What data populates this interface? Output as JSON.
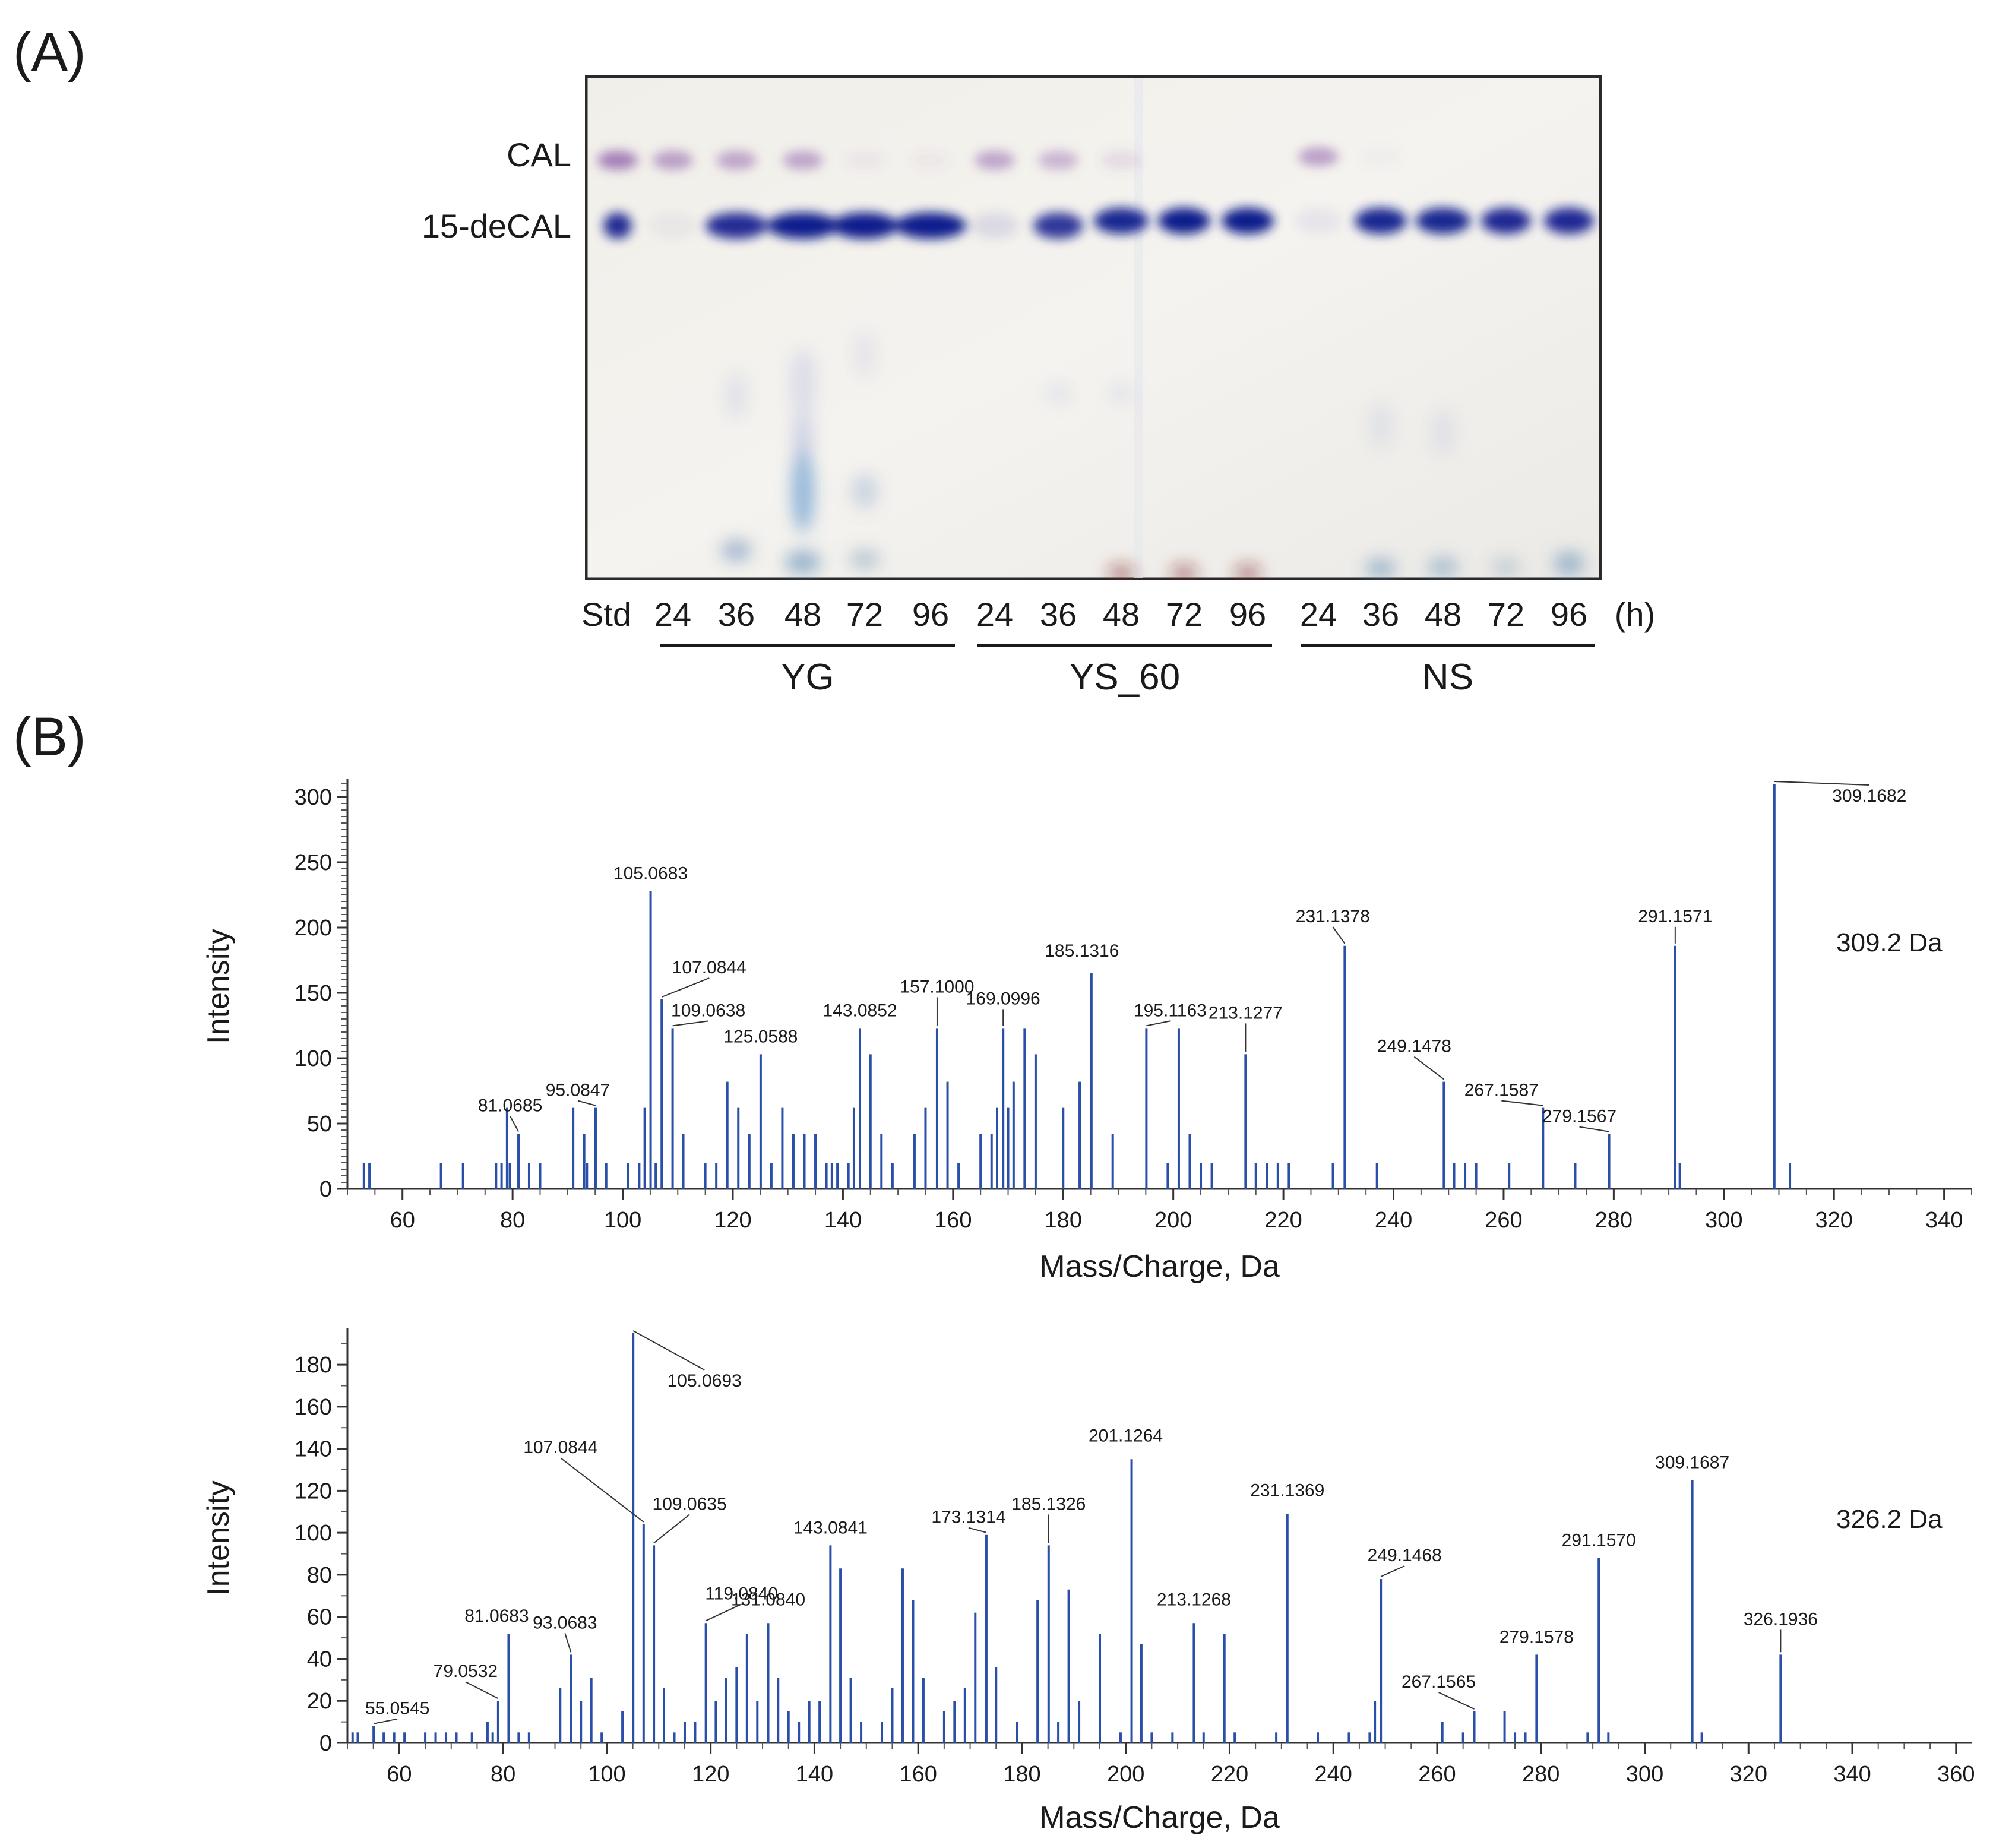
{
  "panel_a": {
    "label": "(A)",
    "band_labels": [
      "CAL",
      "15-deCAL"
    ],
    "std_label": "Std",
    "lanes": [
      "24",
      "36",
      "48",
      "72",
      "96",
      "24",
      "36",
      "48",
      "72",
      "96",
      "24",
      "36",
      "48",
      "72",
      "96"
    ],
    "unit": "(h)",
    "groups": [
      "YG",
      "YS_60",
      "NS"
    ]
  },
  "panel_b": {
    "label": "(B)"
  },
  "chart_data": [
    {
      "type": "bar",
      "title": "309.2 Da",
      "xlabel": "Mass/Charge, Da",
      "ylabel": "Intensity",
      "xlim": [
        50,
        345
      ],
      "ylim": [
        0,
        310
      ],
      "xticks": [
        60,
        80,
        100,
        120,
        140,
        160,
        180,
        200,
        220,
        240,
        260,
        280,
        300,
        320,
        340
      ],
      "yticks": [
        0,
        50,
        100,
        150,
        200,
        250,
        300
      ],
      "peaks": [
        {
          "mz": 53,
          "i": 20
        },
        {
          "mz": 54,
          "i": 20
        },
        {
          "mz": 67,
          "i": 20
        },
        {
          "mz": 71,
          "i": 20
        },
        {
          "mz": 77,
          "i": 20
        },
        {
          "mz": 78,
          "i": 20
        },
        {
          "mz": 79,
          "i": 62
        },
        {
          "mz": 79.5,
          "i": 20
        },
        {
          "mz": 81.0685,
          "i": 42,
          "label": "81.0685"
        },
        {
          "mz": 83,
          "i": 20
        },
        {
          "mz": 85,
          "i": 20
        },
        {
          "mz": 91,
          "i": 62
        },
        {
          "mz": 93,
          "i": 42
        },
        {
          "mz": 93.5,
          "i": 20
        },
        {
          "mz": 95.0847,
          "i": 62,
          "label": "95.0847"
        },
        {
          "mz": 97,
          "i": 20
        },
        {
          "mz": 101,
          "i": 20
        },
        {
          "mz": 103,
          "i": 20
        },
        {
          "mz": 104,
          "i": 62
        },
        {
          "mz": 105.0683,
          "i": 228,
          "label": "105.0683"
        },
        {
          "mz": 106,
          "i": 20
        },
        {
          "mz": 107.0844,
          "i": 145,
          "label": "107.0844"
        },
        {
          "mz": 109.0638,
          "i": 123,
          "label": "109.0638"
        },
        {
          "mz": 111,
          "i": 42
        },
        {
          "mz": 115,
          "i": 20
        },
        {
          "mz": 117,
          "i": 20
        },
        {
          "mz": 119,
          "i": 82
        },
        {
          "mz": 121,
          "i": 62
        },
        {
          "mz": 123,
          "i": 42
        },
        {
          "mz": 125.0588,
          "i": 103,
          "label": "125.0588"
        },
        {
          "mz": 127,
          "i": 20
        },
        {
          "mz": 129,
          "i": 62
        },
        {
          "mz": 131,
          "i": 42
        },
        {
          "mz": 133,
          "i": 42
        },
        {
          "mz": 135,
          "i": 42
        },
        {
          "mz": 137,
          "i": 20
        },
        {
          "mz": 138,
          "i": 20
        },
        {
          "mz": 139,
          "i": 20
        },
        {
          "mz": 141,
          "i": 20
        },
        {
          "mz": 142,
          "i": 62
        },
        {
          "mz": 143.0852,
          "i": 123,
          "label": "143.0852"
        },
        {
          "mz": 145,
          "i": 103
        },
        {
          "mz": 147,
          "i": 42
        },
        {
          "mz": 149,
          "i": 20
        },
        {
          "mz": 153,
          "i": 42
        },
        {
          "mz": 155,
          "i": 62
        },
        {
          "mz": 157.1,
          "i": 123,
          "label": "157.1000"
        },
        {
          "mz": 159,
          "i": 82
        },
        {
          "mz": 161,
          "i": 20
        },
        {
          "mz": 165,
          "i": 42
        },
        {
          "mz": 167,
          "i": 42
        },
        {
          "mz": 168,
          "i": 62
        },
        {
          "mz": 169.0996,
          "i": 123,
          "label": "169.0996"
        },
        {
          "mz": 170,
          "i": 62
        },
        {
          "mz": 171,
          "i": 82
        },
        {
          "mz": 173,
          "i": 123
        },
        {
          "mz": 175,
          "i": 103
        },
        {
          "mz": 180,
          "i": 62
        },
        {
          "mz": 183,
          "i": 82
        },
        {
          "mz": 185.1316,
          "i": 165,
          "label": "185.1316"
        },
        {
          "mz": 189,
          "i": 42
        },
        {
          "mz": 195.1163,
          "i": 123,
          "label": "195.1163"
        },
        {
          "mz": 199,
          "i": 20
        },
        {
          "mz": 201,
          "i": 123
        },
        {
          "mz": 203,
          "i": 42
        },
        {
          "mz": 205,
          "i": 20
        },
        {
          "mz": 207,
          "i": 20
        },
        {
          "mz": 213.1277,
          "i": 103,
          "label": "213.1277"
        },
        {
          "mz": 215,
          "i": 20
        },
        {
          "mz": 217,
          "i": 20
        },
        {
          "mz": 219,
          "i": 20
        },
        {
          "mz": 221,
          "i": 20
        },
        {
          "mz": 229,
          "i": 20
        },
        {
          "mz": 231.1378,
          "i": 186,
          "label": "231.1378"
        },
        {
          "mz": 237,
          "i": 20
        },
        {
          "mz": 249.1478,
          "i": 82,
          "label": "249.1478"
        },
        {
          "mz": 251,
          "i": 20
        },
        {
          "mz": 253,
          "i": 20
        },
        {
          "mz": 255,
          "i": 20
        },
        {
          "mz": 261,
          "i": 20
        },
        {
          "mz": 267.1587,
          "i": 62,
          "label": "267.1587"
        },
        {
          "mz": 273,
          "i": 20
        },
        {
          "mz": 279.1567,
          "i": 42,
          "label": "279.1567"
        },
        {
          "mz": 291.1571,
          "i": 186,
          "label": "291.1571"
        },
        {
          "mz": 292,
          "i": 20
        },
        {
          "mz": 309.1682,
          "i": 310,
          "label": "309.1682"
        },
        {
          "mz": 312,
          "i": 20
        }
      ]
    },
    {
      "type": "bar",
      "title": "326.2 Da",
      "xlabel": "Mass/Charge, Da",
      "ylabel": "Intensity",
      "xlim": [
        50,
        363
      ],
      "ylim": [
        0,
        195
      ],
      "xticks": [
        60,
        80,
        100,
        120,
        140,
        160,
        180,
        200,
        220,
        240,
        260,
        280,
        300,
        320,
        340,
        360
      ],
      "yticks": [
        0,
        20,
        40,
        60,
        80,
        100,
        120,
        140,
        160,
        180
      ],
      "peaks": [
        {
          "mz": 51,
          "i": 5
        },
        {
          "mz": 52,
          "i": 5
        },
        {
          "mz": 55.0545,
          "i": 8,
          "label": "55.0545"
        },
        {
          "mz": 57,
          "i": 5
        },
        {
          "mz": 59,
          "i": 5
        },
        {
          "mz": 61,
          "i": 5
        },
        {
          "mz": 65,
          "i": 5
        },
        {
          "mz": 67,
          "i": 5
        },
        {
          "mz": 69,
          "i": 5
        },
        {
          "mz": 71,
          "i": 5
        },
        {
          "mz": 74,
          "i": 5
        },
        {
          "mz": 77,
          "i": 10
        },
        {
          "mz": 78,
          "i": 5
        },
        {
          "mz": 79.0532,
          "i": 20,
          "label": "79.0532"
        },
        {
          "mz": 81.0683,
          "i": 52,
          "label": "81.0683"
        },
        {
          "mz": 83,
          "i": 5
        },
        {
          "mz": 85,
          "i": 5
        },
        {
          "mz": 91,
          "i": 26
        },
        {
          "mz": 93.0683,
          "i": 42,
          "label": "93.0683"
        },
        {
          "mz": 95,
          "i": 20
        },
        {
          "mz": 97,
          "i": 31
        },
        {
          "mz": 99,
          "i": 5
        },
        {
          "mz": 103,
          "i": 15
        },
        {
          "mz": 105.0693,
          "i": 195,
          "label": "105.0693"
        },
        {
          "mz": 107.0844,
          "i": 104,
          "label": "107.0844"
        },
        {
          "mz": 109.0635,
          "i": 94,
          "label": "109.0635"
        },
        {
          "mz": 111,
          "i": 26
        },
        {
          "mz": 113,
          "i": 5
        },
        {
          "mz": 115,
          "i": 10
        },
        {
          "mz": 117,
          "i": 10
        },
        {
          "mz": 119.084,
          "i": 57,
          "label": "119.0840"
        },
        {
          "mz": 121,
          "i": 20
        },
        {
          "mz": 123,
          "i": 31
        },
        {
          "mz": 125,
          "i": 36
        },
        {
          "mz": 127,
          "i": 52
        },
        {
          "mz": 129,
          "i": 20
        },
        {
          "mz": 131.084,
          "i": 57,
          "label": "131.0840"
        },
        {
          "mz": 133,
          "i": 31
        },
        {
          "mz": 135,
          "i": 15
        },
        {
          "mz": 137,
          "i": 10
        },
        {
          "mz": 139,
          "i": 20
        },
        {
          "mz": 141,
          "i": 20
        },
        {
          "mz": 143.0841,
          "i": 94,
          "label": "143.0841"
        },
        {
          "mz": 145,
          "i": 83
        },
        {
          "mz": 147,
          "i": 31
        },
        {
          "mz": 149,
          "i": 10
        },
        {
          "mz": 153,
          "i": 10
        },
        {
          "mz": 155,
          "i": 26
        },
        {
          "mz": 157,
          "i": 83
        },
        {
          "mz": 159,
          "i": 68
        },
        {
          "mz": 161,
          "i": 31
        },
        {
          "mz": 165,
          "i": 15
        },
        {
          "mz": 167,
          "i": 20
        },
        {
          "mz": 169,
          "i": 26
        },
        {
          "mz": 171,
          "i": 62
        },
        {
          "mz": 173.1314,
          "i": 99,
          "label": "173.1314"
        },
        {
          "mz": 175,
          "i": 36
        },
        {
          "mz": 179,
          "i": 10
        },
        {
          "mz": 183,
          "i": 68
        },
        {
          "mz": 185.1326,
          "i": 94,
          "label": "185.1326"
        },
        {
          "mz": 187,
          "i": 10
        },
        {
          "mz": 189,
          "i": 73
        },
        {
          "mz": 191,
          "i": 20
        },
        {
          "mz": 195,
          "i": 52
        },
        {
          "mz": 199,
          "i": 5
        },
        {
          "mz": 201.1264,
          "i": 135,
          "label": "201.1264"
        },
        {
          "mz": 203,
          "i": 47
        },
        {
          "mz": 205,
          "i": 5
        },
        {
          "mz": 209,
          "i": 5
        },
        {
          "mz": 213.1268,
          "i": 57,
          "label": "213.1268"
        },
        {
          "mz": 215,
          "i": 5
        },
        {
          "mz": 219,
          "i": 52
        },
        {
          "mz": 221,
          "i": 5
        },
        {
          "mz": 229,
          "i": 5
        },
        {
          "mz": 231.1369,
          "i": 109,
          "label": "231.1369"
        },
        {
          "mz": 237,
          "i": 5
        },
        {
          "mz": 243,
          "i": 5
        },
        {
          "mz": 247,
          "i": 5
        },
        {
          "mz": 248,
          "i": 20
        },
        {
          "mz": 249.1468,
          "i": 78,
          "label": "249.1468"
        },
        {
          "mz": 261,
          "i": 10
        },
        {
          "mz": 265,
          "i": 5
        },
        {
          "mz": 267.1565,
          "i": 15,
          "label": "267.1565"
        },
        {
          "mz": 273,
          "i": 15
        },
        {
          "mz": 275,
          "i": 5
        },
        {
          "mz": 277,
          "i": 5
        },
        {
          "mz": 279.1578,
          "i": 42,
          "label": "279.1578"
        },
        {
          "mz": 289,
          "i": 5
        },
        {
          "mz": 291.157,
          "i": 88,
          "label": "291.1570"
        },
        {
          "mz": 293,
          "i": 5
        },
        {
          "mz": 309.1687,
          "i": 125,
          "label": "309.1687"
        },
        {
          "mz": 311,
          "i": 5
        },
        {
          "mz": 326.1936,
          "i": 42,
          "label": "326.1936"
        }
      ]
    }
  ]
}
